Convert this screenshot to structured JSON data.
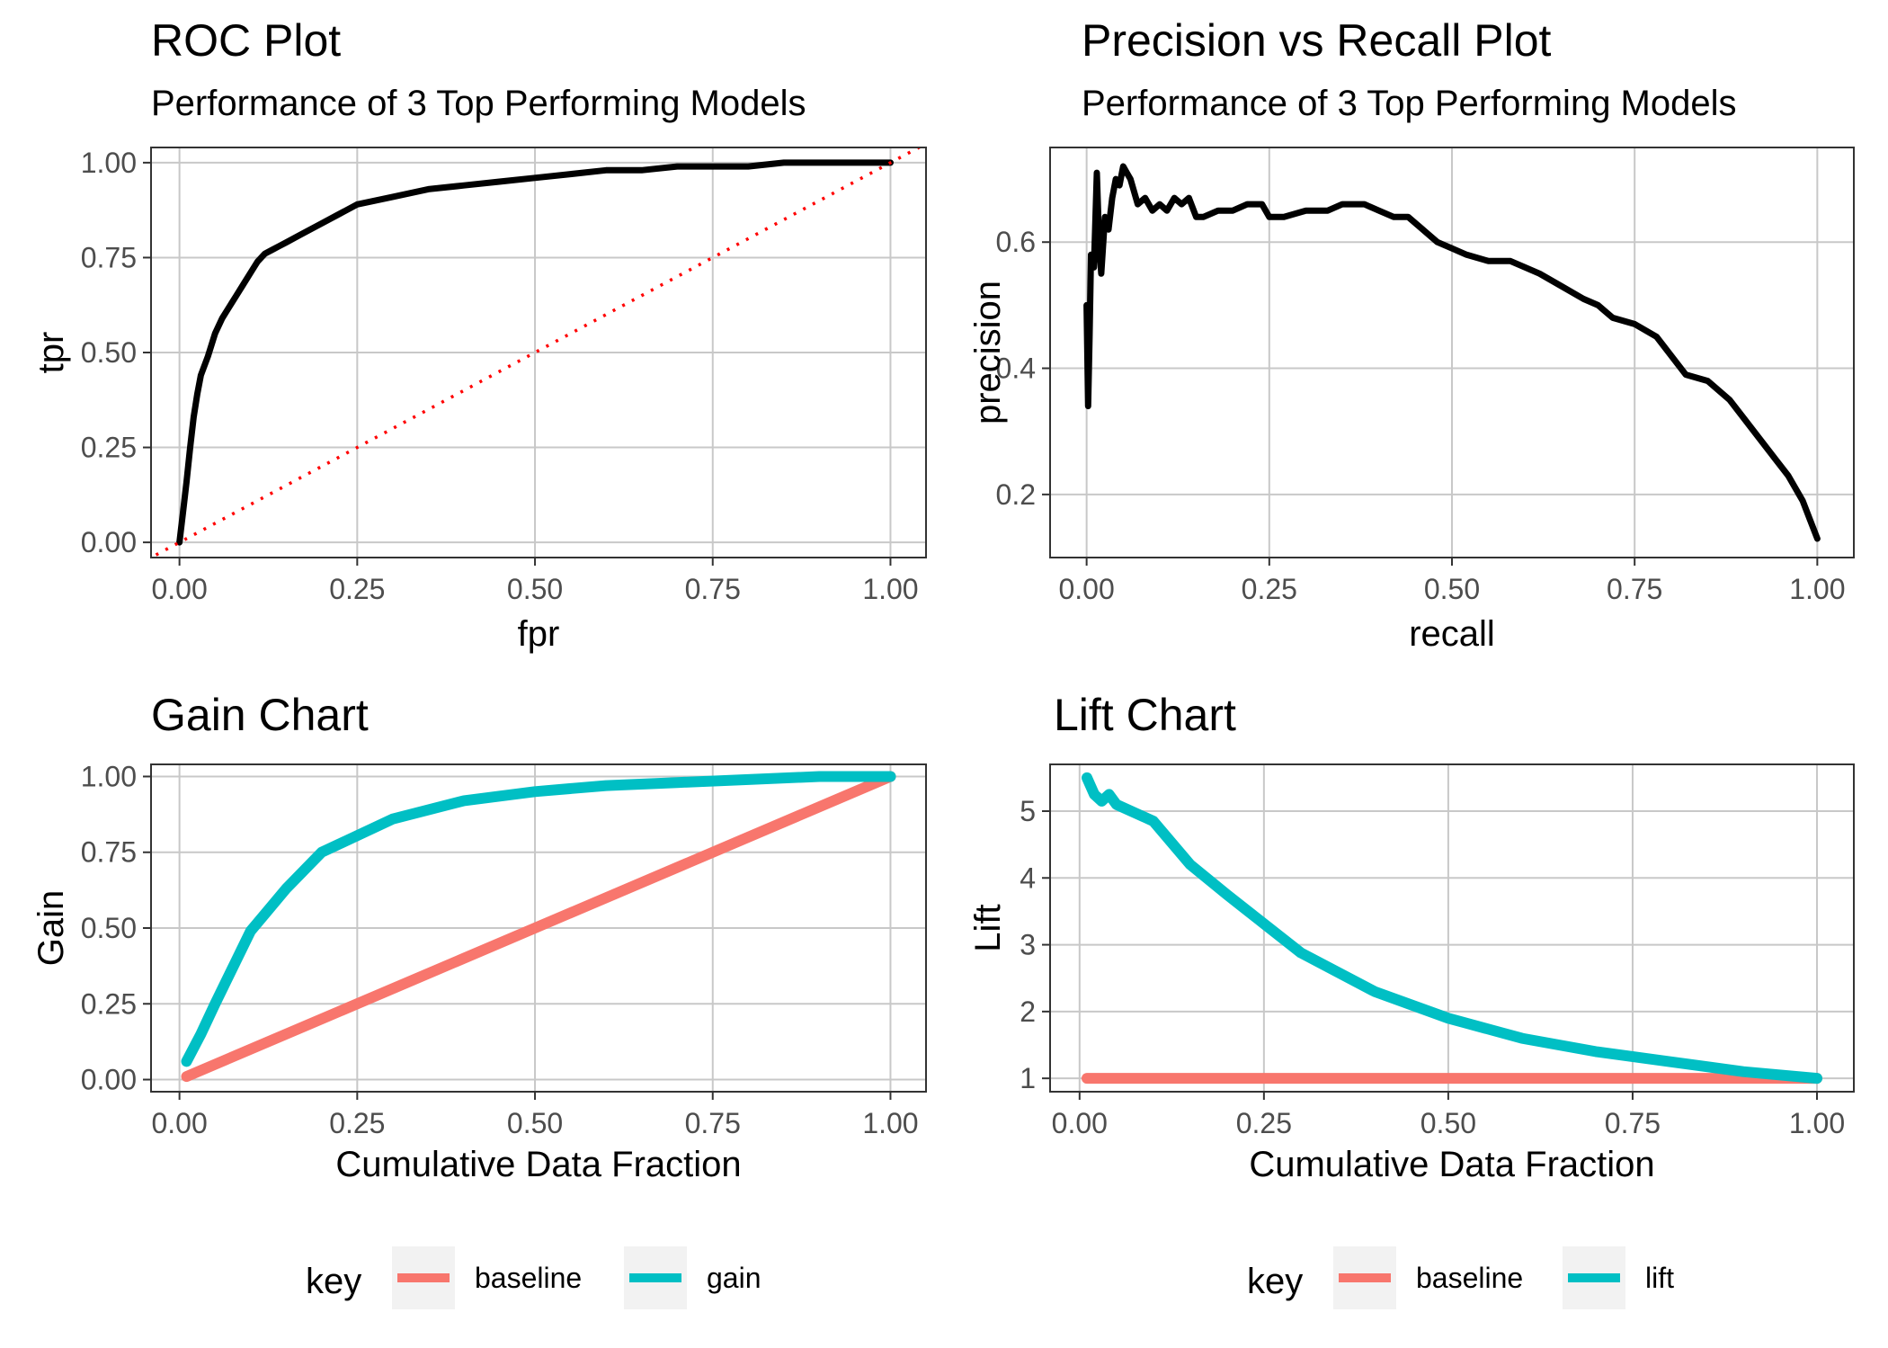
{
  "colors": {
    "baseline": "#F8766D",
    "model": "#00BFC4",
    "curve": "#000000",
    "diagonal": "#FF0000"
  },
  "chart_data": [
    {
      "id": "roc",
      "type": "line",
      "title": "ROC Plot",
      "subtitle": "Performance of 3 Top Performing Models",
      "xlabel": "fpr",
      "ylabel": "tpr",
      "xlim": [
        -0.04,
        1.05
      ],
      "ylim": [
        -0.04,
        1.04
      ],
      "xticks": [
        0,
        0.25,
        0.5,
        0.75,
        1
      ],
      "xtick_labels": [
        "0.00",
        "0.25",
        "0.50",
        "0.75",
        "1.00"
      ],
      "yticks": [
        0,
        0.25,
        0.5,
        0.75,
        1
      ],
      "ytick_labels": [
        "0.00",
        "0.25",
        "0.50",
        "0.75",
        "1.00"
      ],
      "grid": true,
      "series": [
        {
          "style": "solid",
          "color": "#000000",
          "x": [
            0,
            0.005,
            0.01,
            0.015,
            0.02,
            0.025,
            0.03,
            0.04,
            0.05,
            0.06,
            0.07,
            0.08,
            0.09,
            0.1,
            0.11,
            0.12,
            0.13,
            0.14,
            0.15,
            0.17,
            0.2,
            0.22,
            0.25,
            0.3,
            0.35,
            0.4,
            0.45,
            0.5,
            0.55,
            0.6,
            0.65,
            0.7,
            0.75,
            0.8,
            0.85,
            0.9,
            1.0
          ],
          "y": [
            0.0,
            0.08,
            0.16,
            0.25,
            0.33,
            0.39,
            0.44,
            0.49,
            0.55,
            0.59,
            0.62,
            0.65,
            0.68,
            0.71,
            0.74,
            0.76,
            0.77,
            0.78,
            0.79,
            0.81,
            0.84,
            0.86,
            0.89,
            0.91,
            0.93,
            0.94,
            0.95,
            0.96,
            0.97,
            0.98,
            0.98,
            0.99,
            0.99,
            0.99,
            1.0,
            1.0,
            1.0
          ]
        },
        {
          "style": "dotted",
          "color": "#FF0000",
          "x": [
            -0.1,
            1.1
          ],
          "y": [
            -0.1,
            1.1
          ]
        }
      ]
    },
    {
      "id": "precision-recall",
      "type": "line",
      "title": "Precision vs Recall Plot",
      "subtitle": "Performance of 3 Top Performing Models",
      "xlabel": "recall",
      "ylabel": "precision",
      "xlim": [
        -0.05,
        1.05
      ],
      "ylim": [
        0.1,
        0.75
      ],
      "xticks": [
        0,
        0.25,
        0.5,
        0.75,
        1
      ],
      "xtick_labels": [
        "0.00",
        "0.25",
        "0.50",
        "0.75",
        "1.00"
      ],
      "yticks": [
        0.2,
        0.4,
        0.6
      ],
      "ytick_labels": [
        "0.2",
        "0.4",
        "0.6"
      ],
      "grid": true,
      "series": [
        {
          "style": "solid",
          "color": "#000000",
          "x": [
            0.0,
            0.002,
            0.004,
            0.006,
            0.01,
            0.014,
            0.017,
            0.02,
            0.025,
            0.03,
            0.035,
            0.04,
            0.045,
            0.05,
            0.055,
            0.06,
            0.07,
            0.08,
            0.09,
            0.1,
            0.11,
            0.12,
            0.13,
            0.14,
            0.15,
            0.16,
            0.18,
            0.2,
            0.22,
            0.24,
            0.25,
            0.27,
            0.3,
            0.33,
            0.35,
            0.38,
            0.4,
            0.42,
            0.44,
            0.46,
            0.48,
            0.5,
            0.52,
            0.55,
            0.58,
            0.6,
            0.62,
            0.65,
            0.68,
            0.7,
            0.72,
            0.75,
            0.78,
            0.8,
            0.82,
            0.85,
            0.88,
            0.9,
            0.92,
            0.94,
            0.96,
            0.98,
            0.99,
            1.0
          ],
          "y": [
            0.5,
            0.34,
            0.45,
            0.58,
            0.56,
            0.71,
            0.6,
            0.55,
            0.64,
            0.62,
            0.67,
            0.7,
            0.69,
            0.72,
            0.71,
            0.7,
            0.66,
            0.67,
            0.65,
            0.66,
            0.65,
            0.67,
            0.66,
            0.67,
            0.64,
            0.64,
            0.65,
            0.65,
            0.66,
            0.66,
            0.64,
            0.64,
            0.65,
            0.65,
            0.66,
            0.66,
            0.65,
            0.64,
            0.64,
            0.62,
            0.6,
            0.59,
            0.58,
            0.57,
            0.57,
            0.56,
            0.55,
            0.53,
            0.51,
            0.5,
            0.48,
            0.47,
            0.45,
            0.42,
            0.39,
            0.38,
            0.35,
            0.32,
            0.29,
            0.26,
            0.23,
            0.19,
            0.16,
            0.13
          ]
        }
      ]
    },
    {
      "id": "gain",
      "type": "line",
      "title": "Gain Chart",
      "xlabel": "Cumulative Data Fraction",
      "ylabel": "Gain",
      "xlim": [
        -0.04,
        1.05
      ],
      "ylim": [
        -0.04,
        1.04
      ],
      "xticks": [
        0,
        0.25,
        0.5,
        0.75,
        1
      ],
      "xtick_labels": [
        "0.00",
        "0.25",
        "0.50",
        "0.75",
        "1.00"
      ],
      "yticks": [
        0,
        0.25,
        0.5,
        0.75,
        1
      ],
      "ytick_labels": [
        "0.00",
        "0.25",
        "0.50",
        "0.75",
        "1.00"
      ],
      "grid": true,
      "legend": {
        "title": "key",
        "position": "bottom",
        "entries": [
          "baseline",
          "gain"
        ]
      },
      "series": [
        {
          "name": "baseline",
          "color": "#F8766D",
          "x": [
            0.01,
            1.0
          ],
          "y": [
            0.01,
            1.0
          ]
        },
        {
          "name": "gain",
          "color": "#00BFC4",
          "x": [
            0.01,
            0.03,
            0.05,
            0.1,
            0.15,
            0.2,
            0.3,
            0.4,
            0.5,
            0.6,
            0.7,
            0.8,
            0.9,
            1.0
          ],
          "y": [
            0.06,
            0.15,
            0.25,
            0.49,
            0.63,
            0.75,
            0.86,
            0.92,
            0.95,
            0.97,
            0.98,
            0.99,
            1.0,
            1.0
          ]
        }
      ]
    },
    {
      "id": "lift",
      "type": "line",
      "title": "Lift Chart",
      "xlabel": "Cumulative Data Fraction",
      "ylabel": "Lift",
      "xlim": [
        -0.04,
        1.05
      ],
      "ylim": [
        0.8,
        5.7
      ],
      "xticks": [
        0,
        0.25,
        0.5,
        0.75,
        1
      ],
      "xtick_labels": [
        "0.00",
        "0.25",
        "0.50",
        "0.75",
        "1.00"
      ],
      "yticks": [
        1,
        2,
        3,
        4,
        5
      ],
      "ytick_labels": [
        "1",
        "2",
        "3",
        "4",
        "5"
      ],
      "grid": true,
      "legend": {
        "title": "key",
        "position": "bottom",
        "entries": [
          "baseline",
          "lift"
        ]
      },
      "series": [
        {
          "name": "baseline",
          "color": "#F8766D",
          "x": [
            0.01,
            1.0
          ],
          "y": [
            1.0,
            1.0
          ]
        },
        {
          "name": "lift",
          "color": "#00BFC4",
          "x": [
            0.01,
            0.02,
            0.03,
            0.04,
            0.05,
            0.1,
            0.15,
            0.2,
            0.3,
            0.4,
            0.5,
            0.6,
            0.7,
            0.8,
            0.9,
            1.0
          ],
          "y": [
            5.5,
            5.25,
            5.15,
            5.25,
            5.1,
            4.85,
            4.2,
            3.75,
            2.88,
            2.3,
            1.9,
            1.6,
            1.4,
            1.25,
            1.1,
            1.0
          ]
        }
      ]
    }
  ]
}
